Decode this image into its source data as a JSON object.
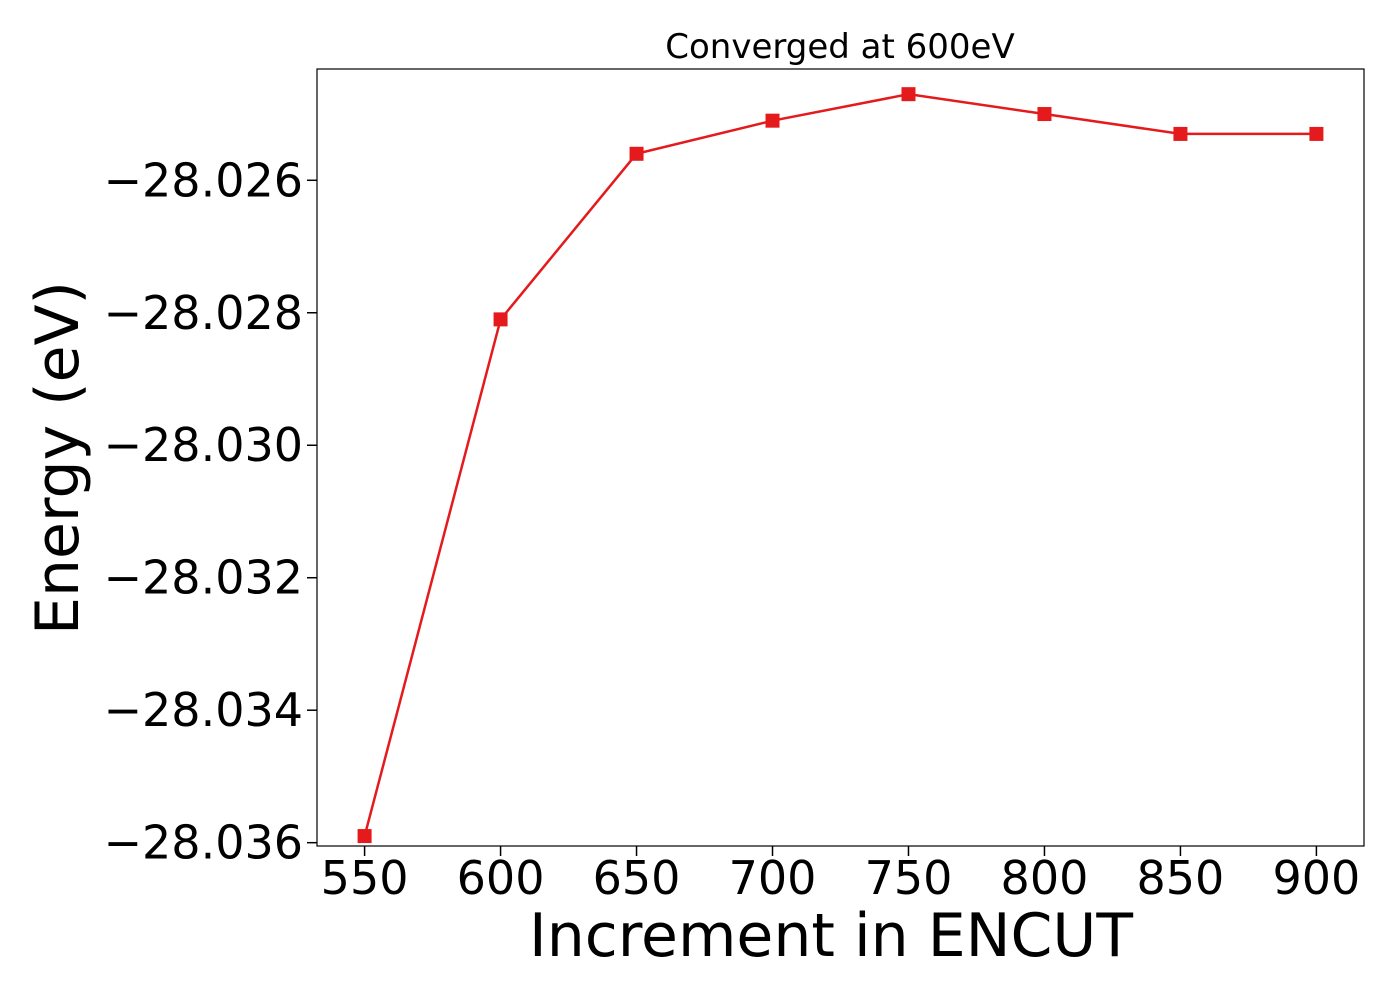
{
  "chart_data": {
    "type": "line",
    "title": "Converged at 600eV",
    "xlabel": "Increment in ENCUT",
    "ylabel": "Energy (eV)",
    "x": [
      550,
      600,
      650,
      700,
      750,
      800,
      850,
      900
    ],
    "series": [
      {
        "values": [
          -28.0359,
          -28.0281,
          -28.0256,
          -28.0251,
          -28.0247,
          -28.025,
          -28.0253,
          -28.0253
        ],
        "color": "#e41a1c",
        "marker": "square"
      }
    ],
    "xticks": [
      550,
      600,
      650,
      700,
      750,
      800,
      850,
      900
    ],
    "xtick_labels": [
      "550",
      "600",
      "650",
      "700",
      "750",
      "800",
      "850",
      "900"
    ],
    "yticks": [
      -28.036,
      -28.034,
      -28.032,
      -28.03,
      -28.028,
      -28.026
    ],
    "ytick_labels": [
      "−28.036",
      "−28.034",
      "−28.032",
      "−28.030",
      "−28.028",
      "−28.026"
    ],
    "xlim": [
      532.5,
      917.5
    ],
    "ylim": [
      -28.03605,
      -28.02432
    ],
    "grid": false,
    "legend": "none"
  }
}
